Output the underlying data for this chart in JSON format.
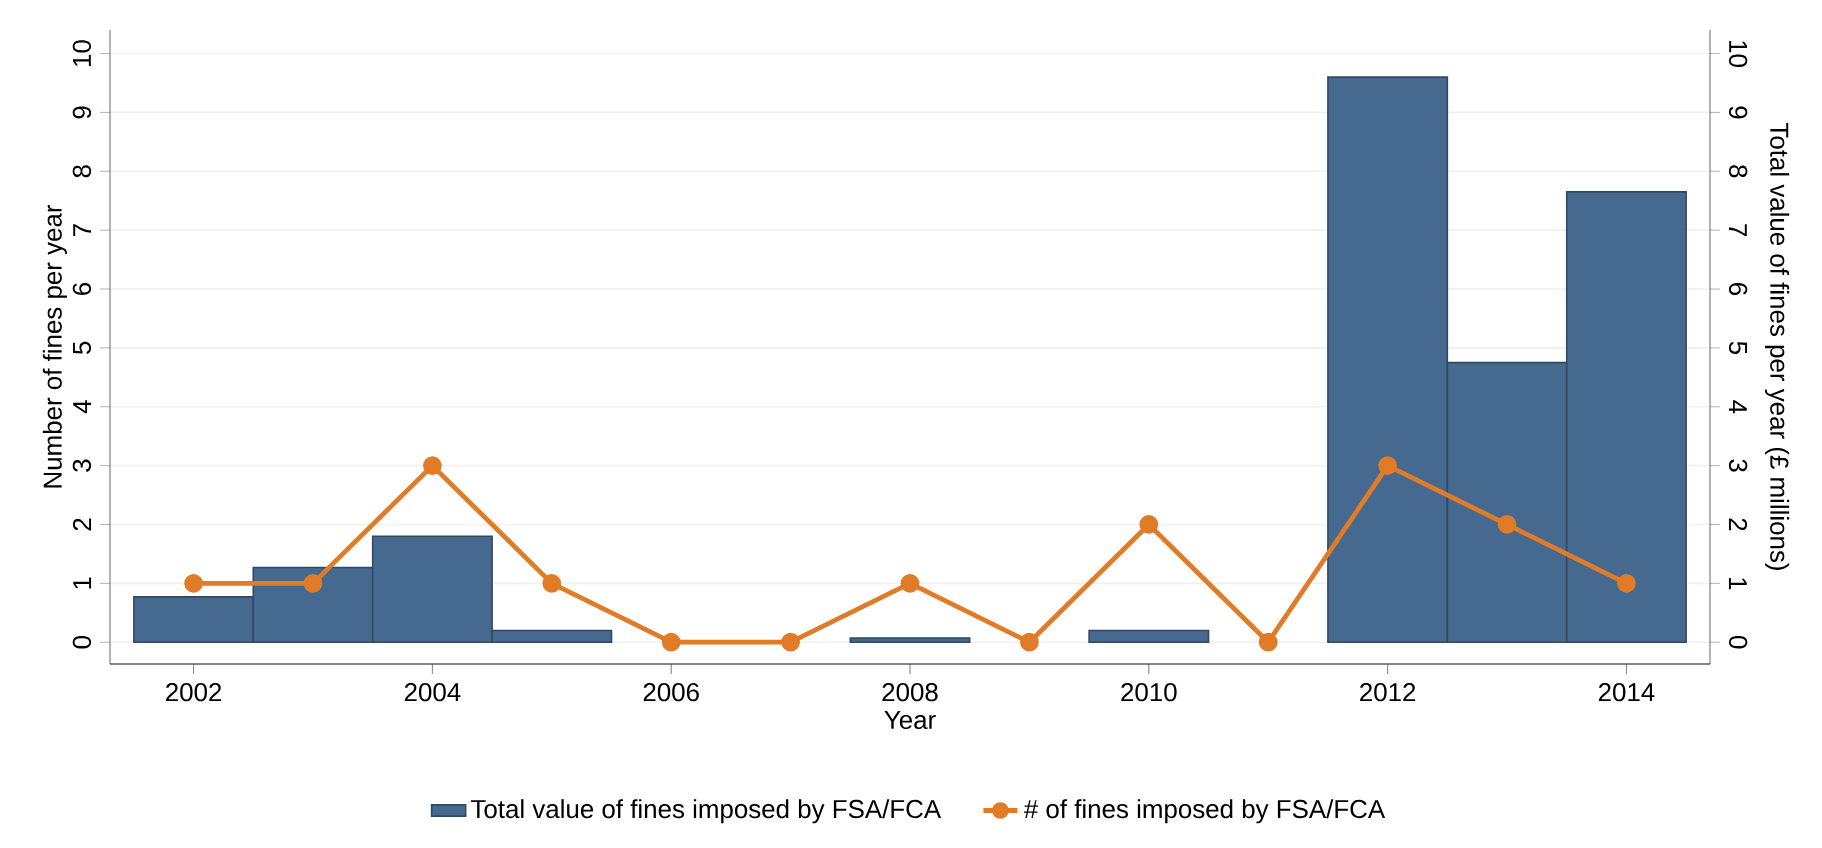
{
  "chart_data": {
    "type": "line",
    "xlabel": "Year",
    "ylabel": "Number of fines per year",
    "y2label": "Total value of fines per year  (£ millions)",
    "x": [
      2002,
      2003,
      2004,
      2005,
      2006,
      2007,
      2008,
      2009,
      2010,
      2011,
      2012,
      2013,
      2014
    ],
    "xlim": [
      2001.3,
      2014.7
    ],
    "xticks": [
      2002,
      2004,
      2006,
      2008,
      2010,
      2012,
      2014
    ],
    "ylim": [
      -0.37,
      10.4
    ],
    "yticks": [
      0,
      1,
      2,
      3,
      4,
      5,
      6,
      7,
      8,
      9,
      10
    ],
    "y2lim": [
      -0.37,
      10.4
    ],
    "y2ticks": [
      0,
      1,
      2,
      3,
      4,
      5,
      6,
      7,
      8,
      9,
      10
    ],
    "grid": "y",
    "legend": "bottom",
    "series": [
      {
        "name": "Total value of fines imposed by FSA/FCA",
        "type": "bar",
        "axis": "y2",
        "color": "#46698f",
        "values": [
          0.77,
          1.27,
          1.8,
          0.2,
          null,
          null,
          0.07,
          null,
          0.2,
          null,
          9.6,
          4.75,
          7.65
        ]
      },
      {
        "name": "# of fines imposed by FSA/FCA",
        "type": "line",
        "color": "#e07b28",
        "marker": "circle",
        "values": [
          1,
          1,
          3,
          1,
          0,
          0,
          1,
          0,
          2,
          0,
          3,
          2,
          1
        ]
      }
    ]
  }
}
